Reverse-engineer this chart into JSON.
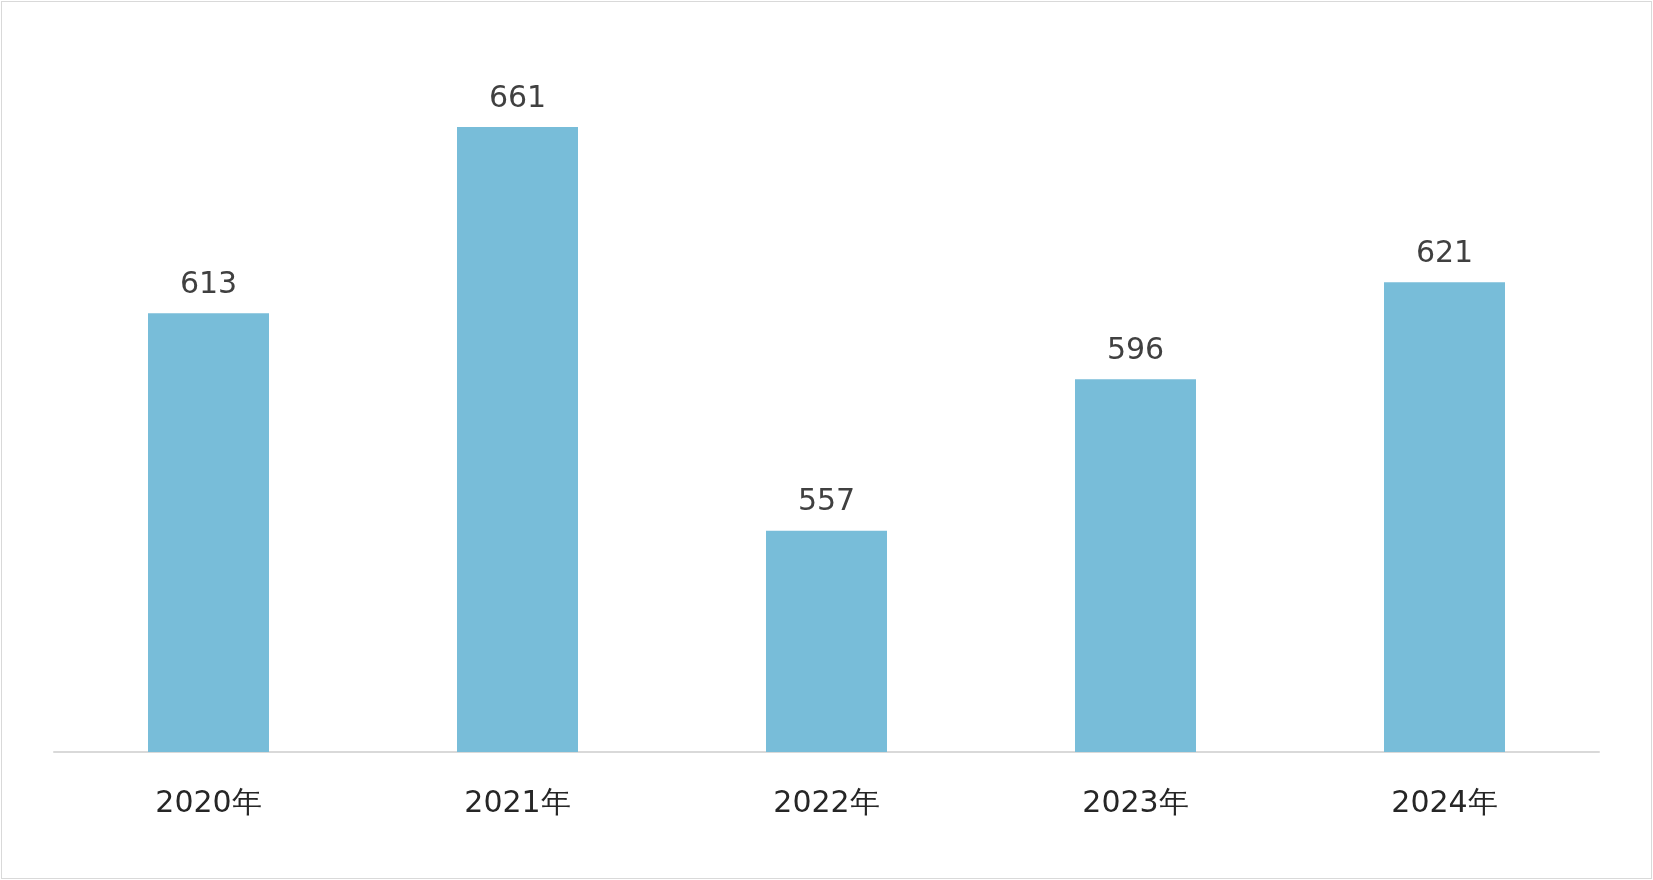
{
  "chart_data": {
    "type": "bar",
    "categories": [
      "2020年",
      "2021年",
      "2022年",
      "2023年",
      "2024年"
    ],
    "values": [
      613,
      661,
      557,
      596,
      621
    ],
    "color": "#78bdd9",
    "ylim": [
      500,
      661
    ],
    "data_labels": true
  }
}
